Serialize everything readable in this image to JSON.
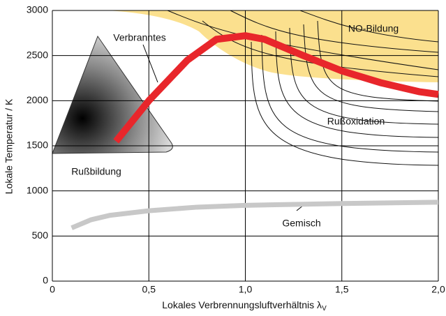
{
  "chart_data": {
    "type": "line",
    "xlabel": "Lokales Verbrennungsluftverhältnis λ",
    "xlabel_subscript": "V",
    "ylabel": "Lokale Temperatur / K",
    "xlim": [
      0,
      2
    ],
    "xticks": [
      {
        "value": 0,
        "label": "0"
      },
      {
        "value": 0.5,
        "label": "0,5"
      },
      {
        "value": 1,
        "label": "1,0"
      },
      {
        "value": 1.5,
        "label": "1,5"
      },
      {
        "value": 2,
        "label": "2,0"
      }
    ],
    "ylim": [
      0,
      3000
    ],
    "yticks": [
      0,
      500,
      1000,
      1500,
      2000,
      2500,
      3000
    ],
    "grid": true,
    "series": [
      {
        "name": "Verbranntes",
        "color": "#e8262b",
        "x": [
          0.33,
          0.5,
          0.7,
          0.85,
          1.0,
          1.1,
          1.3,
          1.5,
          1.7,
          1.9,
          2.0
        ],
        "values": [
          1550,
          2000,
          2450,
          2680,
          2720,
          2680,
          2500,
          2330,
          2200,
          2100,
          2070
        ]
      },
      {
        "name": "Gemisch",
        "color": "#c8c8c8",
        "x": [
          0.1,
          0.2,
          0.3,
          0.5,
          0.75,
          1.0,
          1.5,
          2.0
        ],
        "values": [
          590,
          680,
          730,
          780,
          820,
          840,
          860,
          875
        ]
      }
    ],
    "annotations": [
      "NO-Bildung",
      "Rußoxidation",
      "Rußbildung"
    ]
  }
}
